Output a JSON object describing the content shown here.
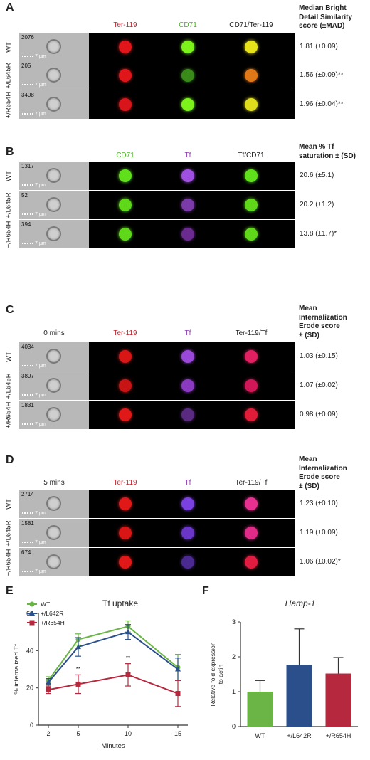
{
  "panels": [
    {
      "label": "A",
      "title_lines": [
        "Median Bright",
        "Detail Similarity",
        "score (±MAD)"
      ],
      "timepoint": "",
      "columns": [
        {
          "text": "Ter-119",
          "color": "#c0262d"
        },
        {
          "text": "CD71",
          "color": "#4caf2a"
        },
        {
          "text": "CD71/Ter-119",
          "color": "#222222"
        }
      ],
      "rows": [
        {
          "genotype": "WT",
          "count": "2076",
          "scale": "7 µm",
          "value": "1.81 (±0.09)",
          "colors": [
            "#e0161b",
            "#7cf21a",
            "#e8e21a"
          ]
        },
        {
          "genotype": "+/L645R",
          "count": "205",
          "scale": "7 µm",
          "value": "1.56 (±0.09)**",
          "colors": [
            "#e0161b",
            "#3a8a1a",
            "#e07818"
          ]
        },
        {
          "genotype": "+/R654H",
          "count": "3408",
          "scale": "7 µm",
          "value": "1.96 (±0.04)**",
          "colors": [
            "#d8151a",
            "#7cf21a",
            "#e0de1c"
          ]
        }
      ]
    },
    {
      "label": "B",
      "title_lines": [
        "Mean % Tf",
        "saturation ± (SD)"
      ],
      "timepoint": "",
      "columns": [
        {
          "text": "CD71",
          "color": "#4caf2a"
        },
        {
          "text": "Tf",
          "color": "#8e3fb0"
        },
        {
          "text": "Tf/CD71",
          "color": "#222222"
        }
      ],
      "rows": [
        {
          "genotype": "WT",
          "count": "1317",
          "scale": "7 µm",
          "value": "20.6 (±5.1)",
          "colors": [
            "#5fe01a",
            "#a050e0",
            "#5fe01a"
          ]
        },
        {
          "genotype": "+/L645R",
          "count": "52",
          "scale": "7 µm",
          "value": "20.2 (±1.2)",
          "colors": [
            "#5fd81a",
            "#7a3aa8",
            "#5fd81a"
          ]
        },
        {
          "genotype": "+/R654H",
          "count": "394",
          "scale": "7 µm",
          "value": "13.8 (±1.7)*",
          "colors": [
            "#5fd81a",
            "#6a2a90",
            "#5fd81a"
          ]
        }
      ]
    },
    {
      "label": "C",
      "title_lines": [
        "Mean",
        "Internalization",
        "Erode score",
        "± (SD)"
      ],
      "timepoint": "0 mins",
      "columns": [
        {
          "text": "Ter-119",
          "color": "#c0262d"
        },
        {
          "text": "Tf",
          "color": "#8e3fb0"
        },
        {
          "text": "Ter-119/Tf",
          "color": "#222222"
        }
      ],
      "rows": [
        {
          "genotype": "WT",
          "count": "4034",
          "scale": "7 µm",
          "value": "1.03 (±0.15)",
          "colors": [
            "#d81616",
            "#9a48d8",
            "#e02060"
          ]
        },
        {
          "genotype": "+/L645R",
          "count": "3807",
          "scale": "7 µm",
          "value": "1.07 (±0.02)",
          "colors": [
            "#c81414",
            "#8a3ac0",
            "#d01858"
          ]
        },
        {
          "genotype": "+/R654H",
          "count": "1831",
          "scale": "7 µm",
          "value": "0.98 (±0.09)",
          "colors": [
            "#e01818",
            "#5a2a80",
            "#e01c38"
          ]
        }
      ]
    },
    {
      "label": "D",
      "title_lines": [
        "Mean",
        "Internalization",
        "Erode score",
        "± (SD)"
      ],
      "timepoint": "5 mins",
      "columns": [
        {
          "text": "Ter-119",
          "color": "#c0262d"
        },
        {
          "text": "Tf",
          "color": "#8e3fb0"
        },
        {
          "text": "Ter-119/Tf",
          "color": "#222222"
        }
      ],
      "rows": [
        {
          "genotype": "WT",
          "count": "2714",
          "scale": "7 µm",
          "value": "1.23 (±0.10)",
          "colors": [
            "#e01818",
            "#7a40e0",
            "#e83090"
          ]
        },
        {
          "genotype": "+/L645R",
          "count": "1581",
          "scale": "7 µm",
          "value": "1.19 (±0.09)",
          "colors": [
            "#d81616",
            "#6a36c8",
            "#e02c88"
          ]
        },
        {
          "genotype": "+/R654H",
          "count": "674",
          "scale": "7 µm",
          "value": "1.06 (±0.02)*",
          "colors": [
            "#e01818",
            "#4a2a90",
            "#e01c40"
          ]
        }
      ]
    }
  ],
  "chart_data": [
    {
      "panel_label": "E",
      "type": "line",
      "title": "Tf uptake",
      "xlabel": "Minutes",
      "ylabel": "% internalized Tf",
      "x": [
        2,
        5,
        10,
        15
      ],
      "xticks": [
        "2",
        "5",
        "10",
        "15"
      ],
      "ylim": [
        0,
        60
      ],
      "yticks": [
        0,
        20,
        40,
        60
      ],
      "legend": "top-left",
      "series": [
        {
          "name": "WT",
          "color": "#6ab545",
          "marker": "circle",
          "values": [
            24,
            46,
            53,
            31
          ],
          "err": [
            2,
            3,
            3,
            7
          ]
        },
        {
          "name": "+/L642R",
          "color": "#2a4f8a",
          "marker": "triangle",
          "values": [
            23,
            42,
            50,
            30
          ],
          "err": [
            2,
            5,
            4,
            6
          ]
        },
        {
          "name": "+/R654H",
          "color": "#b5283e",
          "marker": "square",
          "values": [
            19,
            22,
            27,
            17
          ],
          "err": [
            2,
            5,
            6,
            7
          ]
        }
      ],
      "annotations": [
        {
          "x": 5,
          "y": 29,
          "text": "**"
        },
        {
          "x": 10,
          "y": 35,
          "text": "**"
        }
      ]
    },
    {
      "panel_label": "F",
      "type": "bar",
      "title": "Hamp-1",
      "xlabel": "",
      "ylabel": "Relative fold expression to actin",
      "categories": [
        "WT",
        "+/L642R",
        "+/R654H"
      ],
      "values": [
        1.0,
        1.77,
        1.52
      ],
      "err": [
        0.32,
        1.03,
        0.46
      ],
      "colors": [
        "#6ab545",
        "#2a4f8a",
        "#b5283e"
      ],
      "ylim": [
        0,
        3
      ],
      "yticks": [
        0,
        1,
        2,
        3
      ]
    }
  ]
}
